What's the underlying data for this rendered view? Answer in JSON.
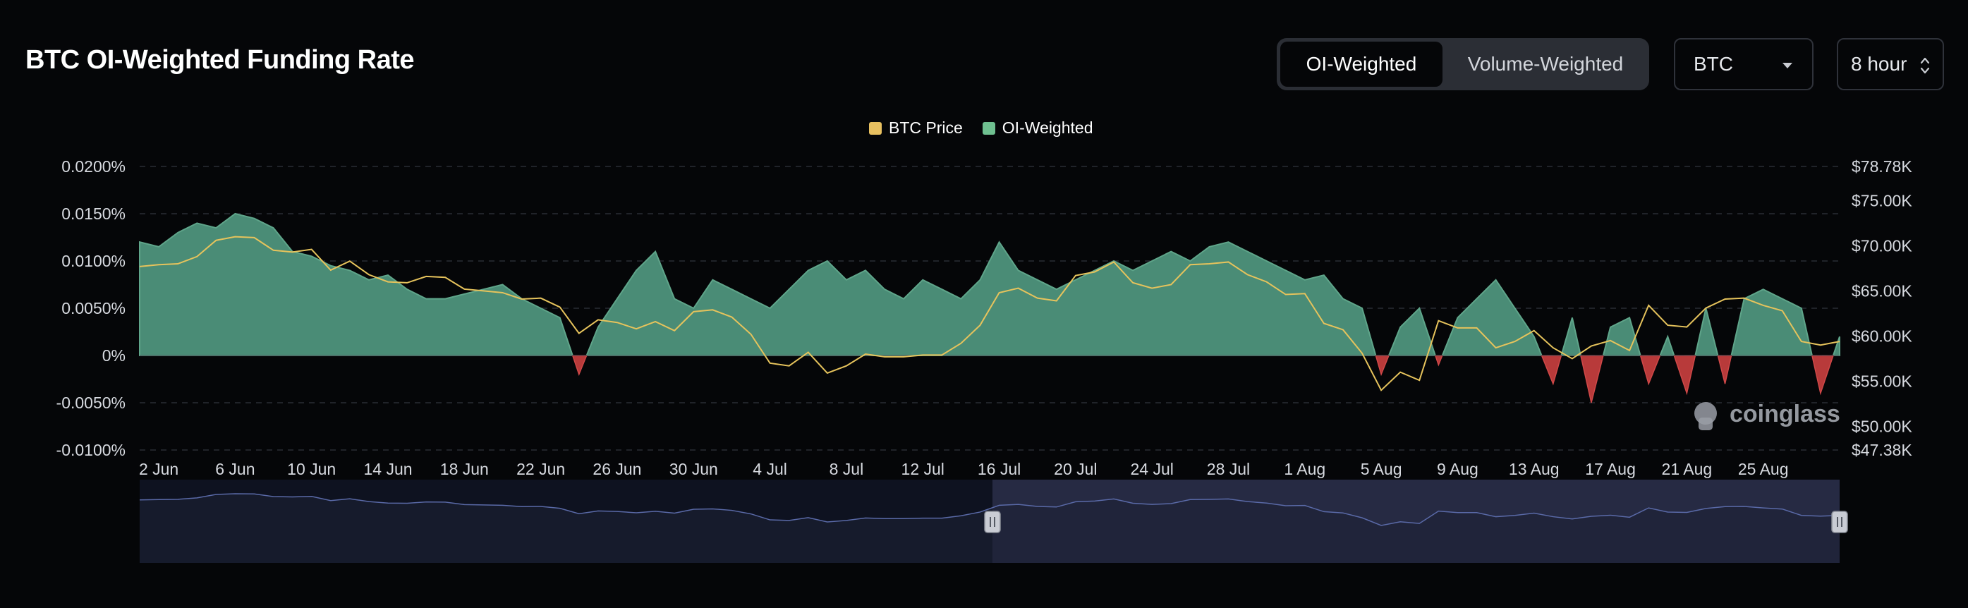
{
  "page": {
    "title": "BTC OI-Weighted Funding Rate"
  },
  "toggle": {
    "options": [
      "OI-Weighted",
      "Volume-Weighted"
    ],
    "active": "OI-Weighted"
  },
  "coin_select": {
    "value": "BTC"
  },
  "interval_select": {
    "value": "8 hour"
  },
  "watermark": "coinglass",
  "colors": {
    "positive_fill": "#4a8c76",
    "positive_line": "#5fa58a",
    "negative_fill": "#b83a3a",
    "price_line": "#e6c35c",
    "legend_price": "#e8c060",
    "legend_oi": "#6fc090",
    "navigator_fill": "#2a2f4a",
    "navigator_line": "#5a6aa8",
    "background": "#050608"
  },
  "chart_data": {
    "type": "area",
    "title": "BTC OI-Weighted Funding Rate",
    "legend": [
      "BTC Price",
      "OI-Weighted"
    ],
    "legend_position": "top-center",
    "grid": true,
    "x_ticks": [
      "2 Jun",
      "6 Jun",
      "10 Jun",
      "14 Jun",
      "18 Jun",
      "22 Jun",
      "26 Jun",
      "30 Jun",
      "4 Jul",
      "8 Jul",
      "12 Jul",
      "16 Jul",
      "20 Jul",
      "24 Jul",
      "28 Jul",
      "1 Aug",
      "5 Aug",
      "9 Aug",
      "13 Aug",
      "17 Aug",
      "21 Aug",
      "25 Aug"
    ],
    "y_left_ticks": [
      "0.0200%",
      "0.0150%",
      "0.0100%",
      "0.0050%",
      "0%",
      "-0.0050%",
      "-0.0100%"
    ],
    "y_left_range": [
      -0.01,
      0.02
    ],
    "y_right_ticks": [
      "$78.78K",
      "$75.00K",
      "$70.00K",
      "$65.00K",
      "$60.00K",
      "$55.00K",
      "$50.00K",
      "$47.38K"
    ],
    "y_right_range": [
      47.38,
      78.78
    ],
    "series": [
      {
        "name": "OI-Weighted",
        "x": [
          "1 Jun",
          "2 Jun",
          "3 Jun",
          "4 Jun",
          "5 Jun",
          "6 Jun",
          "7 Jun",
          "8 Jun",
          "9 Jun",
          "10 Jun",
          "11 Jun",
          "12 Jun",
          "13 Jun",
          "14 Jun",
          "15 Jun",
          "16 Jun",
          "17 Jun",
          "18 Jun",
          "19 Jun",
          "20 Jun",
          "21 Jun",
          "22 Jun",
          "23 Jun",
          "24 Jun",
          "25 Jun",
          "26 Jun",
          "27 Jun",
          "28 Jun",
          "29 Jun",
          "30 Jun",
          "1 Jul",
          "2 Jul",
          "3 Jul",
          "4 Jul",
          "5 Jul",
          "6 Jul",
          "7 Jul",
          "8 Jul",
          "9 Jul",
          "10 Jul",
          "11 Jul",
          "12 Jul",
          "13 Jul",
          "14 Jul",
          "15 Jul",
          "16 Jul",
          "17 Jul",
          "18 Jul",
          "19 Jul",
          "20 Jul",
          "21 Jul",
          "22 Jul",
          "23 Jul",
          "24 Jul",
          "25 Jul",
          "26 Jul",
          "27 Jul",
          "28 Jul",
          "29 Jul",
          "30 Jul",
          "31 Jul",
          "1 Aug",
          "2 Aug",
          "3 Aug",
          "4 Aug",
          "5 Aug",
          "6 Aug",
          "7 Aug",
          "8 Aug",
          "9 Aug",
          "10 Aug",
          "11 Aug",
          "12 Aug",
          "13 Aug",
          "14 Aug",
          "15 Aug",
          "16 Aug",
          "17 Aug",
          "18 Aug",
          "19 Aug",
          "20 Aug",
          "21 Aug",
          "22 Aug",
          "23 Aug",
          "24 Aug",
          "25 Aug",
          "26 Aug",
          "27 Aug",
          "28 Aug",
          "29 Aug"
        ],
        "values": [
          0.012,
          0.0115,
          0.013,
          0.014,
          0.0135,
          0.015,
          0.0145,
          0.0135,
          0.011,
          0.0105,
          0.0095,
          0.009,
          0.008,
          0.0085,
          0.007,
          0.006,
          0.006,
          0.0065,
          0.007,
          0.0075,
          0.006,
          0.005,
          0.004,
          -0.002,
          0.003,
          0.006,
          0.009,
          0.011,
          0.006,
          0.005,
          0.008,
          0.007,
          0.006,
          0.005,
          0.007,
          0.009,
          0.01,
          0.008,
          0.009,
          0.007,
          0.006,
          0.008,
          0.007,
          0.006,
          0.008,
          0.012,
          0.009,
          0.008,
          0.007,
          0.008,
          0.009,
          0.01,
          0.009,
          0.01,
          0.011,
          0.01,
          0.0115,
          0.012,
          0.011,
          0.01,
          0.009,
          0.008,
          0.0085,
          0.006,
          0.005,
          -0.002,
          0.003,
          0.005,
          -0.001,
          0.004,
          0.006,
          0.008,
          0.005,
          0.002,
          -0.003,
          0.004,
          -0.005,
          0.003,
          0.004,
          -0.003,
          0.002,
          -0.004,
          0.005,
          -0.003,
          0.006,
          0.007,
          0.006,
          0.005,
          -0.004,
          0.002
        ]
      },
      {
        "name": "BTC Price",
        "x": [
          "1 Jun",
          "2 Jun",
          "3 Jun",
          "4 Jun",
          "5 Jun",
          "6 Jun",
          "7 Jun",
          "8 Jun",
          "9 Jun",
          "10 Jun",
          "11 Jun",
          "12 Jun",
          "13 Jun",
          "14 Jun",
          "15 Jun",
          "16 Jun",
          "17 Jun",
          "18 Jun",
          "19 Jun",
          "20 Jun",
          "21 Jun",
          "22 Jun",
          "23 Jun",
          "24 Jun",
          "25 Jun",
          "26 Jun",
          "27 Jun",
          "28 Jun",
          "29 Jun",
          "30 Jun",
          "1 Jul",
          "2 Jul",
          "3 Jul",
          "4 Jul",
          "5 Jul",
          "6 Jul",
          "7 Jul",
          "8 Jul",
          "9 Jul",
          "10 Jul",
          "11 Jul",
          "12 Jul",
          "13 Jul",
          "14 Jul",
          "15 Jul",
          "16 Jul",
          "17 Jul",
          "18 Jul",
          "19 Jul",
          "20 Jul",
          "21 Jul",
          "22 Jul",
          "23 Jul",
          "24 Jul",
          "25 Jul",
          "26 Jul",
          "27 Jul",
          "28 Jul",
          "29 Jul",
          "30 Jul",
          "31 Jul",
          "1 Aug",
          "2 Aug",
          "3 Aug",
          "4 Aug",
          "5 Aug",
          "6 Aug",
          "7 Aug",
          "8 Aug",
          "9 Aug",
          "10 Aug",
          "11 Aug",
          "12 Aug",
          "13 Aug",
          "14 Aug",
          "15 Aug",
          "16 Aug",
          "17 Aug",
          "18 Aug",
          "19 Aug",
          "20 Aug",
          "21 Aug",
          "22 Aug",
          "23 Aug",
          "24 Aug",
          "25 Aug",
          "26 Aug",
          "27 Aug",
          "28 Aug",
          "29 Aug"
        ],
        "values": [
          67.7,
          67.9,
          68.0,
          68.8,
          70.6,
          71.0,
          70.9,
          69.5,
          69.3,
          69.6,
          67.3,
          68.3,
          66.8,
          66.0,
          65.9,
          66.6,
          66.5,
          65.2,
          65.0,
          64.8,
          64.1,
          64.2,
          63.2,
          60.3,
          61.8,
          61.5,
          60.8,
          61.6,
          60.6,
          62.7,
          62.9,
          62.1,
          60.2,
          57.0,
          56.7,
          58.2,
          55.9,
          56.7,
          58.0,
          57.7,
          57.7,
          57.9,
          57.9,
          59.2,
          61.2,
          64.8,
          65.3,
          64.2,
          63.9,
          66.7,
          67.1,
          68.2,
          65.9,
          65.3,
          65.7,
          67.9,
          68.0,
          68.2,
          66.8,
          66.0,
          64.6,
          64.7,
          61.4,
          60.7,
          58.1,
          54.0,
          56.0,
          55.1,
          61.7,
          60.9,
          60.9,
          58.7,
          59.4,
          60.6,
          58.7,
          57.5,
          58.9,
          59.5,
          58.4,
          63.4,
          61.2,
          61.0,
          63.1,
          64.1,
          64.2,
          63.4,
          62.8,
          59.4,
          59.0,
          59.4
        ]
      }
    ]
  }
}
